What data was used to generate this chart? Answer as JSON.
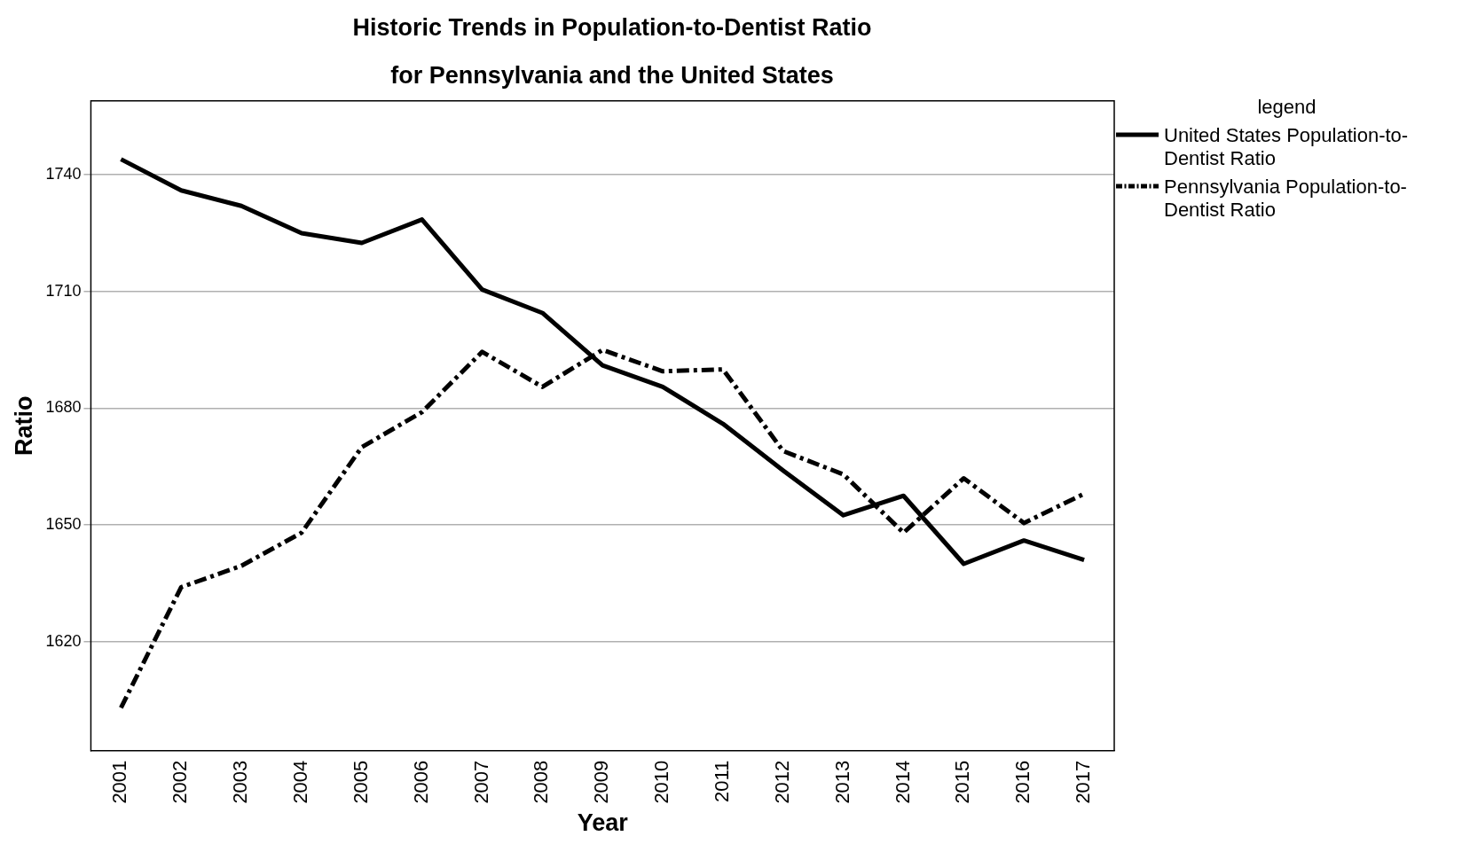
{
  "chart_data": {
    "type": "line",
    "title": "Historic Trends in Population-to-Dentist Ratio for Pennsylvania and the United States",
    "xlabel": "Year",
    "ylabel": "Ratio",
    "legend_title": "legend",
    "legend": "right",
    "grid": "y",
    "marker": "none",
    "categories": [
      "2001",
      "2002",
      "2003",
      "2004",
      "2005",
      "2006",
      "2007",
      "2008",
      "2009",
      "2010",
      "2011",
      "2012",
      "2013",
      "2014",
      "2015",
      "2016",
      "2017"
    ],
    "ylim": [
      1592,
      1759
    ],
    "yticks": [
      1620,
      1650,
      1680,
      1710,
      1740
    ],
    "series": [
      {
        "name": "United States Population-to-Dentist Ratio",
        "color": "#000000",
        "line_style": "solid",
        "values": [
          1744,
          1736,
          1732,
          1725,
          1722.5,
          1728.5,
          1710.5,
          1704.5,
          1691,
          1685.5,
          1676,
          1664,
          1652.5,
          1657.5,
          1640,
          1646,
          1641
        ]
      },
      {
        "name": "Pennsylvania Population-to-Dentist Ratio",
        "color": "#000000",
        "line_style": "dashed",
        "values": [
          1603,
          1634,
          1639.5,
          1648,
          1670,
          1679,
          1694.5,
          1685.5,
          1695,
          1689.5,
          1690,
          1669,
          1663,
          1648,
          1662,
          1650.5,
          1658
        ]
      }
    ]
  }
}
